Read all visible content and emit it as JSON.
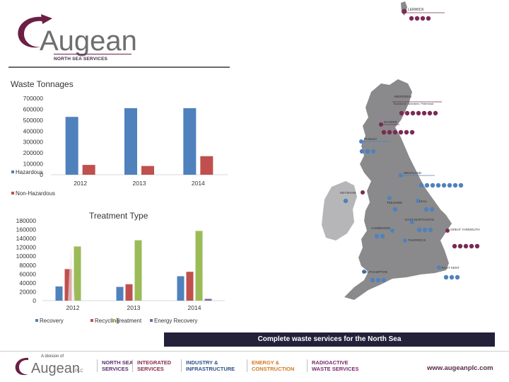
{
  "branding": {
    "logo_text": "Augean",
    "logo_subtitle": "NORTH SEA SERVICES",
    "footer_division_label": "A division of",
    "footer_logo_text": "Augean",
    "footer_logo_suffix": "PLC",
    "website": "www.augeanplc.com"
  },
  "banner": {
    "text": "Complete waste services for the North Sea"
  },
  "divisions": [
    {
      "line1": "NORTH SEA",
      "line2": "SERVICES",
      "color": "#5b2d6e"
    },
    {
      "line1": "INTEGRATED",
      "line2": "SERVICES",
      "color": "#8a2a4e"
    },
    {
      "line1": "INDUSTRY &",
      "line2": "INFRASTRUCTURE",
      "color": "#2d4f8a"
    },
    {
      "line1": "ENERGY &",
      "line2": "CONSTRUCTION",
      "color": "#d07a1e"
    },
    {
      "line1": "RADIOACTIVE",
      "line2": "WASTE SERVICES",
      "color": "#7a2a6e"
    }
  ],
  "map": {
    "locations": [
      {
        "name": "LERWICK"
      },
      {
        "name": "ABERDEEN",
        "note": "Bucksburn, Aberdeen, Peterhead"
      },
      {
        "name": "DUNDEE"
      },
      {
        "name": "PAISLEY"
      },
      {
        "name": "WESTLAND"
      },
      {
        "name": "HEYSHAM"
      },
      {
        "name": "TEESSIDE"
      },
      {
        "name": "HULL"
      },
      {
        "name": "CAMBRIDGE"
      },
      {
        "name": "EAST NORTHANTS"
      },
      {
        "name": "GREAT YARMOUTH"
      },
      {
        "name": "THURROCK"
      },
      {
        "name": "SOUTHAMPTON"
      },
      {
        "name": "EAST KENT"
      }
    ]
  },
  "chart_data": [
    {
      "type": "bar",
      "title": "Waste Tonnages",
      "categories": [
        "2012",
        "2013",
        "2014"
      ],
      "series": [
        {
          "name": "Hazardous",
          "color": "#4f81bd",
          "values": [
            530000,
            610000,
            610000
          ]
        },
        {
          "name": "Non-Hazardous",
          "color": "#c0504d",
          "values": [
            90000,
            80000,
            170000
          ]
        }
      ],
      "yticks": [
        0,
        100000,
        200000,
        300000,
        400000,
        500000,
        600000,
        700000
      ],
      "ylim": [
        0,
        700000
      ],
      "legend_position": "bottom-left"
    },
    {
      "type": "bar",
      "title": "Treatment Type",
      "categories": [
        "2012",
        "2013",
        "2014"
      ],
      "series": [
        {
          "name": "Recovery",
          "color": "#4f81bd",
          "values": [
            32000,
            31000,
            55000
          ]
        },
        {
          "name": "Recycling",
          "color": "#c0504d",
          "values": [
            71000,
            37000,
            65000
          ]
        },
        {
          "name": "Treatment",
          "color": "#9bbb59",
          "values": [
            122000,
            136000,
            157000
          ]
        },
        {
          "name": "Energy Recovery",
          "color": "#8064a2",
          "values": [
            0,
            0,
            4000
          ]
        }
      ],
      "yticks": [
        0,
        20000,
        40000,
        60000,
        80000,
        100000,
        120000,
        140000,
        160000,
        180000
      ],
      "ylim": [
        0,
        180000
      ],
      "legend_position": "bottom"
    }
  ]
}
